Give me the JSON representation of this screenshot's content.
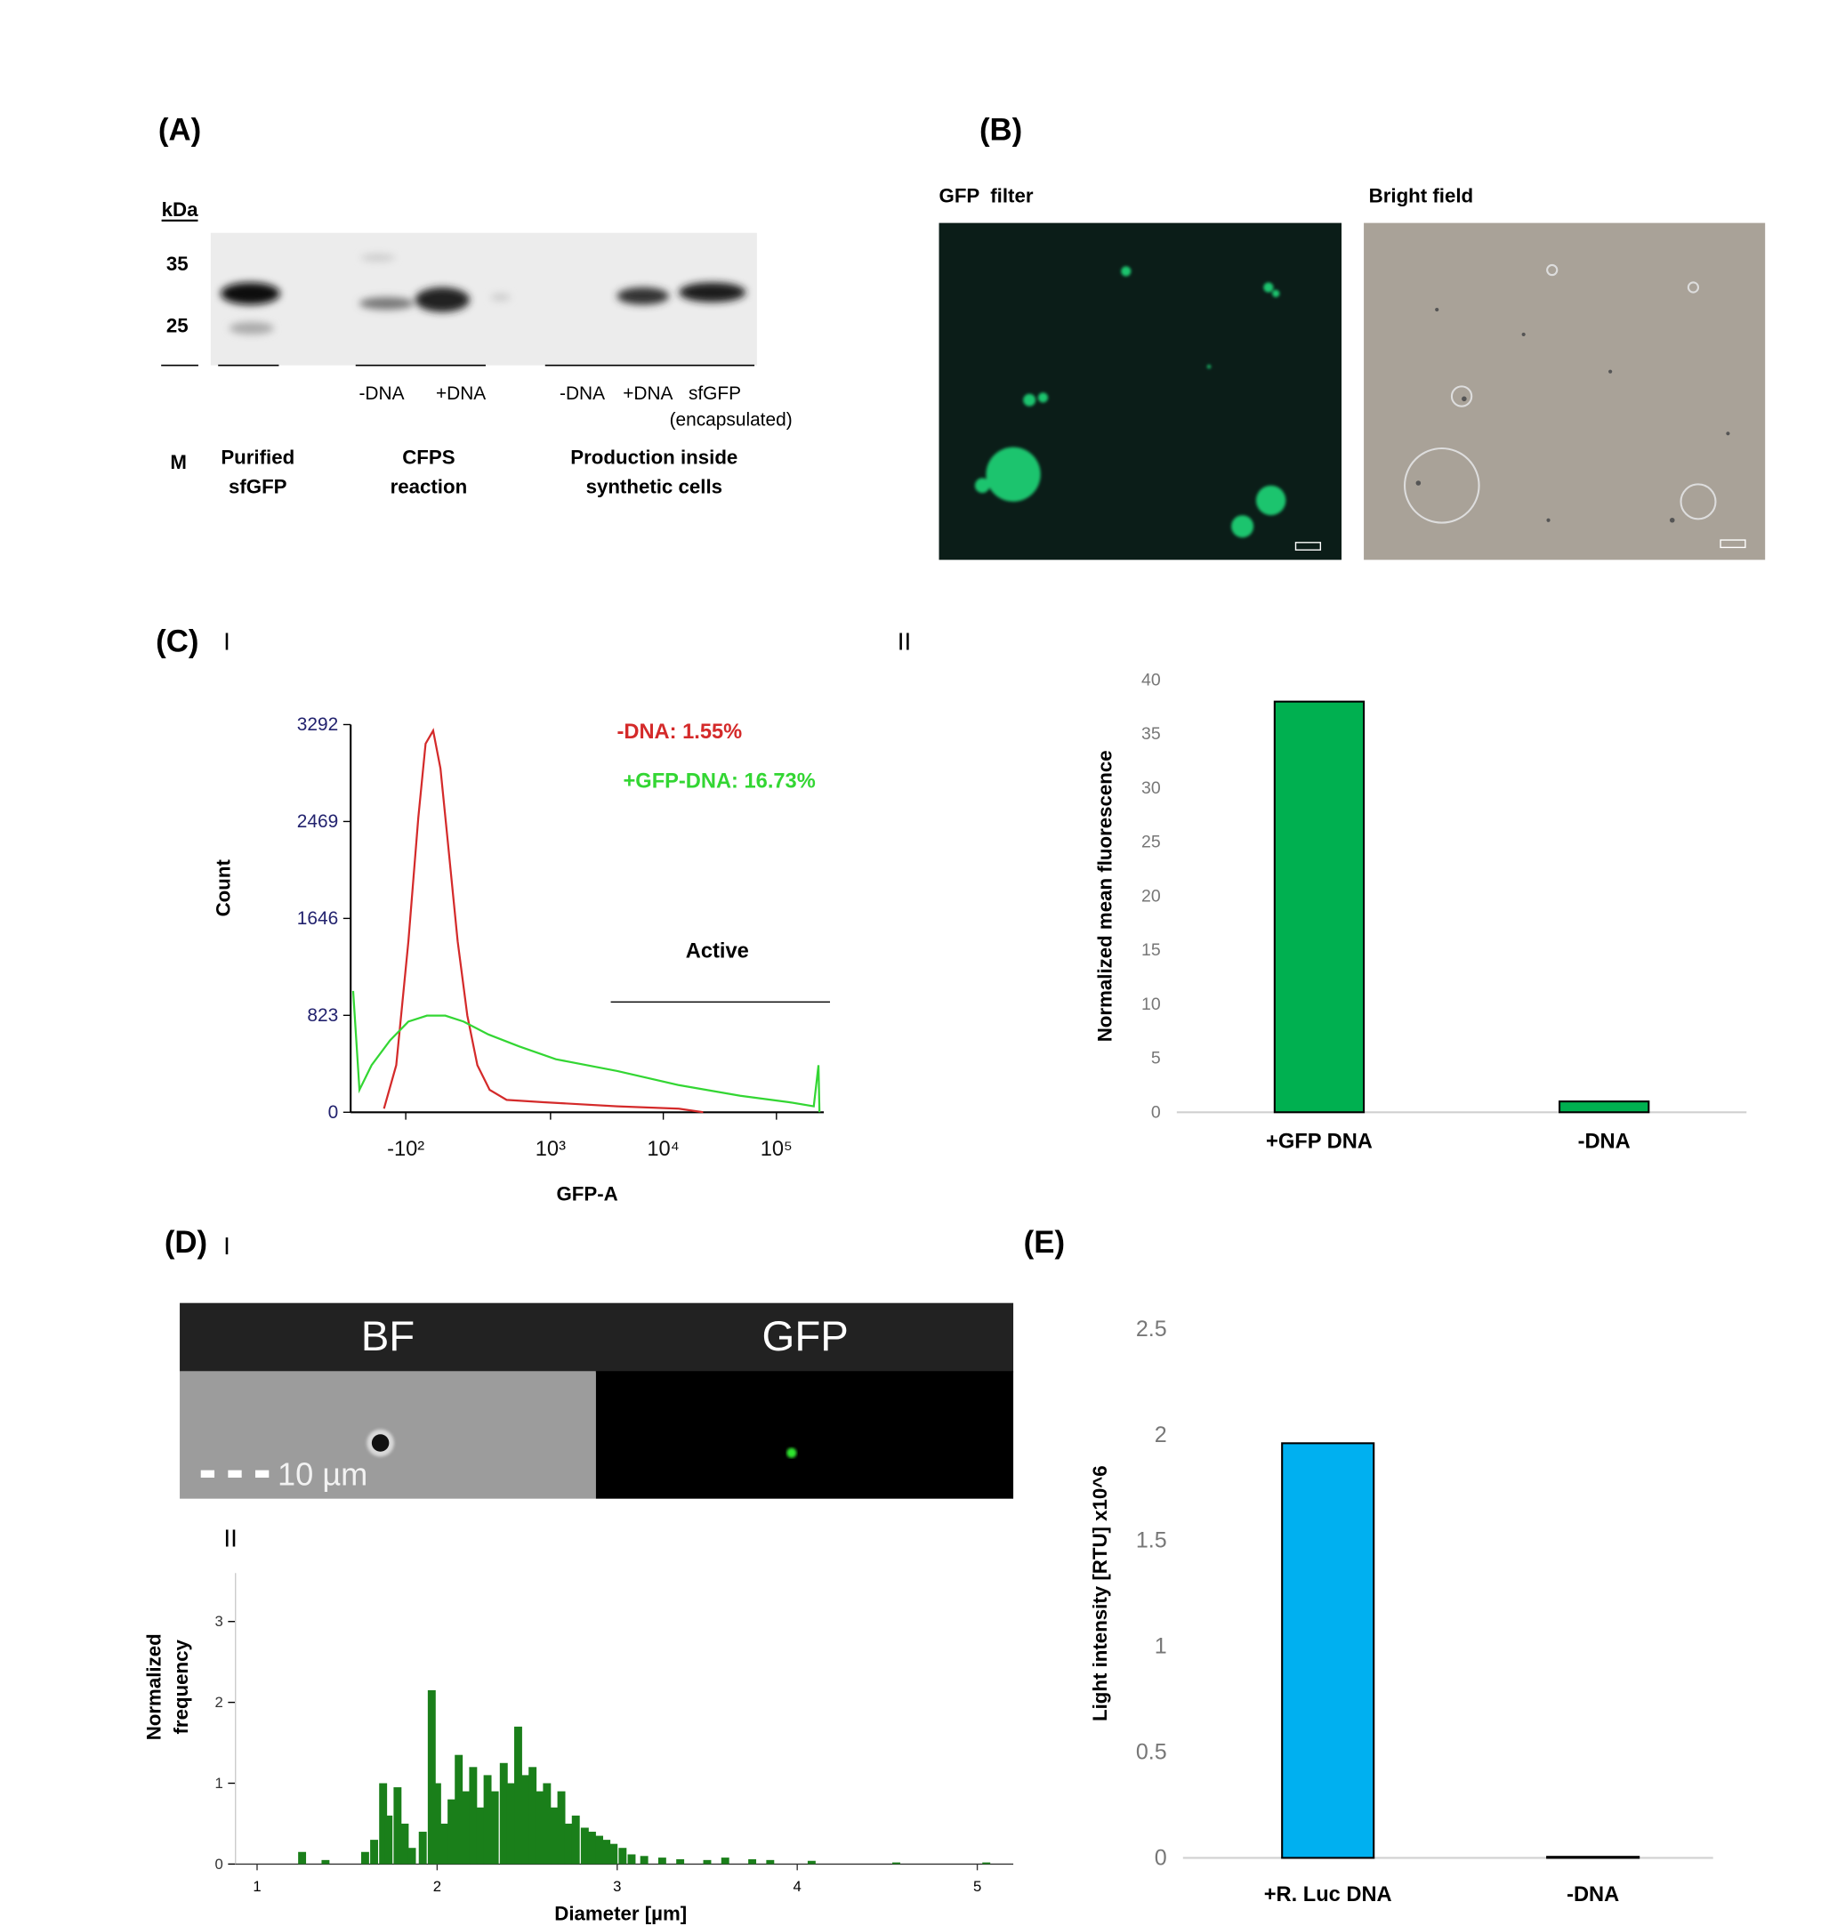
{
  "panels": {
    "A": {
      "label": "(A)",
      "kda": "kDa",
      "markers": [
        "35",
        "25"
      ],
      "lanes": [
        "-DNA",
        "+DNA",
        "-DNA",
        "+DNA",
        "sfGFP",
        "(encapsulated)"
      ],
      "groups": [
        [
          "M"
        ],
        [
          "Purified",
          "sfGFP"
        ],
        [
          "CFPS",
          "reaction"
        ],
        [
          "Production inside",
          "synthetic cells"
        ]
      ]
    },
    "B": {
      "label": "(B)",
      "left": "GFP  filter",
      "right": "Bright field"
    },
    "C": {
      "label": "(C)",
      "sub": [
        "I",
        "II"
      ]
    },
    "D": {
      "label": "(D)",
      "sub": [
        "I",
        "II"
      ],
      "channels": [
        "BF",
        "GFP"
      ],
      "scale_bar": "10 µm"
    },
    "E": {
      "label": "(E)"
    }
  },
  "chart_data": [
    {
      "type": "line",
      "xlabel": "GFP-A",
      "ylabel": "Count",
      "xscale": "biexponential",
      "xlim": [
        -452,
        262144
      ],
      "ylim": [
        0,
        3292
      ],
      "xticks": [
        {
          "value": -100,
          "label": "-10²"
        },
        {
          "value": 1000,
          "label": "10³"
        },
        {
          "value": 10000,
          "label": "10⁴"
        },
        {
          "value": 100000,
          "label": "10⁵"
        }
      ],
      "yticks": [
        0,
        823,
        1646,
        2469,
        3292
      ],
      "annotation": "Active",
      "series": [
        {
          "name": "-DNA: 1.55%",
          "color": "#d42a2a",
          "x": [
            -204,
            -142,
            -89,
            -50,
            -23,
            5,
            32,
            60,
            99,
            142,
            192,
            264,
            393,
            866,
            3924,
            13700,
            22500
          ],
          "values": [
            30,
            400,
            1450,
            2500,
            3130,
            3240,
            2920,
            2290,
            1450,
            820,
            400,
            190,
            105,
            85,
            50,
            30,
            0
          ]
        },
        {
          "name": "+GFP-DNA: 16.73%",
          "color": "#33d633",
          "x": [
            -428,
            -372,
            -280,
            -172,
            -89,
            -18,
            50,
            125,
            256,
            515,
            1118,
            3924,
            13700,
            47900,
            129600,
            213900,
            235000,
            240000
          ],
          "values": [
            1030,
            190,
            400,
            610,
            770,
            820,
            820,
            770,
            660,
            560,
            450,
            350,
            230,
            140,
            85,
            50,
            400,
            0
          ]
        }
      ]
    },
    {
      "type": "bar",
      "ylabel": "Normalized mean fluorescence",
      "categories": [
        "+GFP DNA",
        "-DNA"
      ],
      "values": [
        38,
        1
      ],
      "color": "#00b050",
      "ylim": [
        0,
        40
      ],
      "yticks": [
        0,
        5,
        10,
        15,
        20,
        25,
        30,
        35,
        40
      ]
    },
    {
      "type": "bar",
      "xlabel": "Diameter [µm]",
      "ylabel": [
        "Normalized",
        "frequency"
      ],
      "color": "#1a7f1a",
      "x": [
        1.25,
        1.38,
        1.6,
        1.65,
        1.7,
        1.73,
        1.78,
        1.82,
        1.86,
        1.92,
        1.97,
        2.0,
        2.04,
        2.08,
        2.12,
        2.16,
        2.2,
        2.24,
        2.28,
        2.32,
        2.37,
        2.41,
        2.45,
        2.49,
        2.53,
        2.57,
        2.61,
        2.65,
        2.69,
        2.73,
        2.77,
        2.82,
        2.86,
        2.9,
        2.94,
        2.98,
        3.03,
        3.08,
        3.15,
        3.25,
        3.35,
        3.5,
        3.6,
        3.75,
        3.85,
        4.08,
        4.55,
        5.05
      ],
      "values": [
        0.15,
        0.05,
        0.15,
        0.3,
        1.0,
        0.6,
        0.95,
        0.5,
        0.2,
        0.4,
        2.15,
        1.0,
        0.5,
        0.8,
        1.35,
        0.9,
        1.2,
        0.7,
        1.1,
        0.9,
        1.25,
        1.0,
        1.7,
        1.1,
        1.2,
        0.9,
        1.0,
        0.7,
        0.9,
        0.5,
        0.6,
        0.45,
        0.4,
        0.35,
        0.3,
        0.25,
        0.2,
        0.12,
        0.1,
        0.08,
        0.06,
        0.05,
        0.08,
        0.06,
        0.05,
        0.04,
        0.02,
        0.02
      ],
      "xlim": [
        0.88,
        5.2
      ],
      "ylim": [
        0,
        3.6
      ],
      "xticks": [
        1,
        2,
        3,
        4,
        5
      ],
      "yticks": [
        0,
        1,
        2,
        3
      ]
    },
    {
      "type": "bar",
      "ylabel": "Light intensity [RTU] x10^6",
      "categories": [
        "+R. Luc DNA",
        "-DNA"
      ],
      "values": [
        1.96,
        0.005
      ],
      "color": "#00b0f0",
      "ylim": [
        0,
        2.5
      ],
      "yticks": [
        0,
        0.5,
        1,
        1.5,
        2,
        2.5
      ]
    }
  ]
}
